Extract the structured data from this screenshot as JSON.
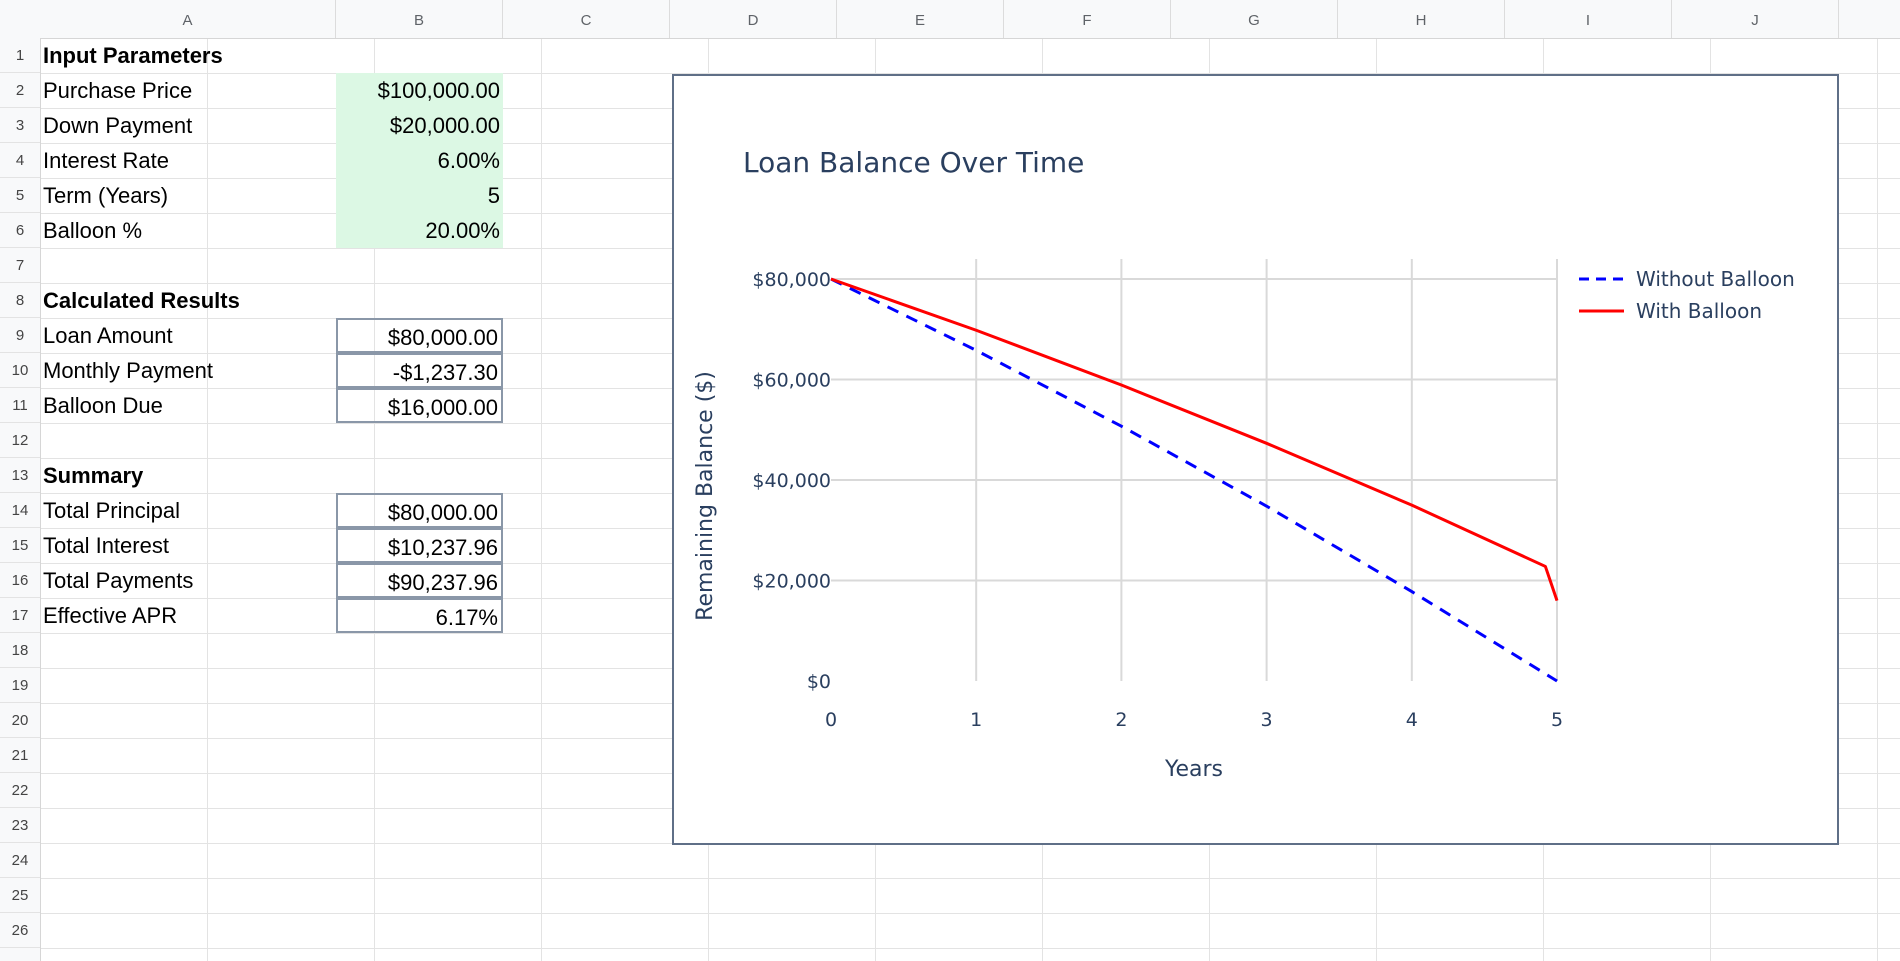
{
  "columns": [
    "A",
    "B",
    "C",
    "D",
    "E",
    "F",
    "G",
    "H",
    "I",
    "J"
  ],
  "rows": [
    "1",
    "2",
    "3",
    "4",
    "5",
    "6",
    "7",
    "8",
    "9",
    "10",
    "11",
    "12",
    "13",
    "14",
    "15",
    "16",
    "17",
    "18",
    "19",
    "20",
    "21",
    "22",
    "23",
    "24",
    "25",
    "26"
  ],
  "sections": {
    "input_title": "Input Parameters",
    "results_title": "Calculated Results",
    "summary_title": "Summary"
  },
  "inputs": [
    {
      "label": "Purchase Price",
      "value": "$100,000.00"
    },
    {
      "label": "Down Payment",
      "value": "$20,000.00"
    },
    {
      "label": "Interest Rate",
      "value": "6.00%"
    },
    {
      "label": "Term (Years)",
      "value": "5"
    },
    {
      "label": "Balloon %",
      "value": "20.00%"
    }
  ],
  "results": [
    {
      "label": "Loan Amount",
      "value": "$80,000.00"
    },
    {
      "label": "Monthly Payment",
      "value": "-$1,237.30"
    },
    {
      "label": "Balloon Due",
      "value": "$16,000.00"
    }
  ],
  "summary": [
    {
      "label": "Total Principal",
      "value": "$80,000.00"
    },
    {
      "label": "Total Interest",
      "value": "$10,237.96"
    },
    {
      "label": "Total Payments",
      "value": "$90,237.96"
    },
    {
      "label": "Effective APR",
      "value": "6.17%"
    }
  ],
  "chart_data": {
    "type": "line",
    "title": "Loan Balance Over Time",
    "xlabel": "Years",
    "ylabel": "Remaining Balance ($)",
    "xlim": [
      0,
      5
    ],
    "ylim": [
      0,
      80000
    ],
    "x_ticks": [
      "0",
      "1",
      "2",
      "3",
      "4",
      "5"
    ],
    "y_ticks": [
      "$0",
      "$20,000",
      "$40,000",
      "$60,000",
      "$80,000"
    ],
    "y_tick_values": [
      0,
      20000,
      40000,
      60000,
      80000
    ],
    "grid": true,
    "legend_position": "top-right",
    "series": [
      {
        "name": "Without Balloon",
        "style": "dashed",
        "color": "#0000ff",
        "x": [
          0,
          1,
          2,
          3,
          4,
          5
        ],
        "y": [
          80000,
          65800,
          50700,
          34800,
          17800,
          0
        ]
      },
      {
        "name": "With Balloon",
        "style": "solid",
        "color": "#ff0000",
        "x": [
          0,
          1,
          2,
          3,
          4,
          4.92,
          5
        ],
        "y": [
          80000,
          69800,
          58900,
          47300,
          35000,
          22800,
          16000
        ]
      }
    ]
  }
}
